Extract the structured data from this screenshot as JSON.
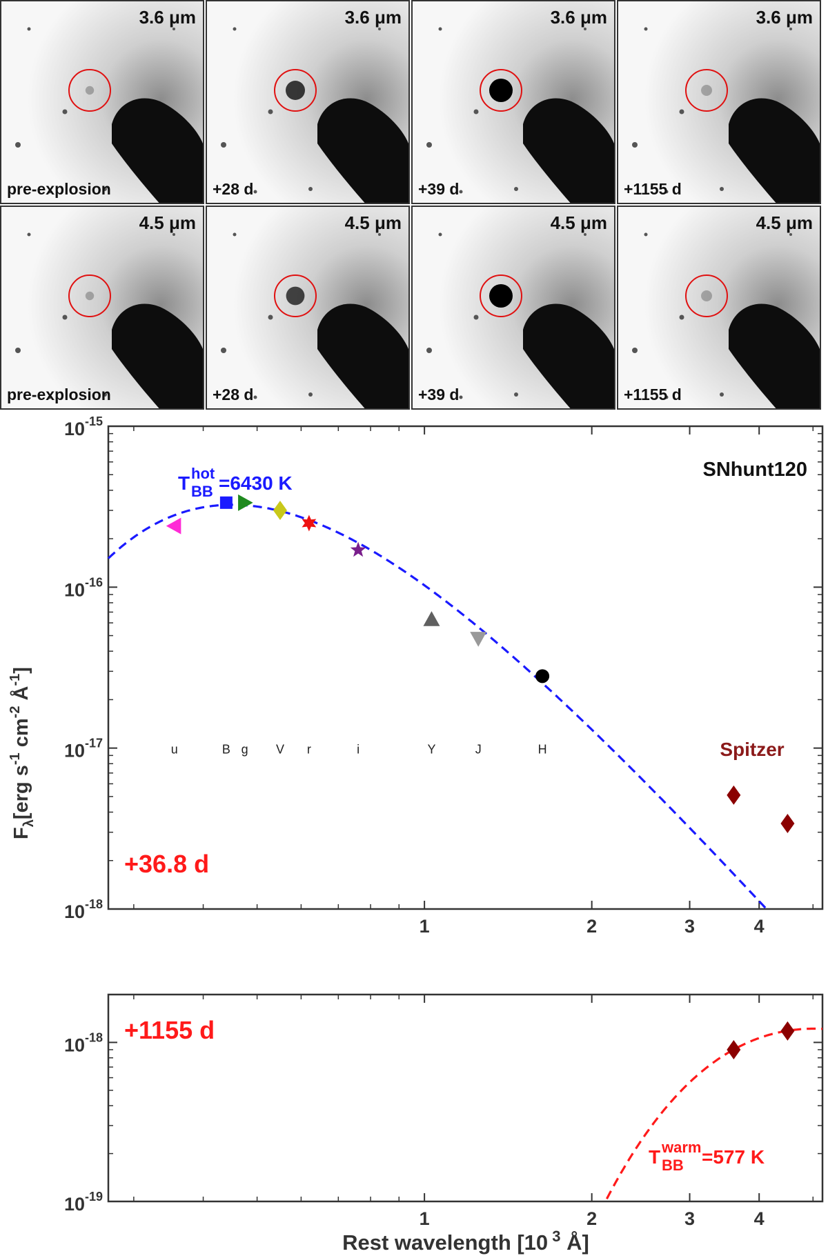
{
  "image_panels": {
    "rows": [
      {
        "band": "3.6 μm",
        "epochs": [
          "pre-explosion",
          "+28 d",
          "+39 d",
          "+1155 d"
        ],
        "source_strength": [
          0.1,
          0.75,
          1.0,
          0.25
        ]
      },
      {
        "band": "4.5 μm",
        "epochs": [
          "pre-explosion",
          "+28 d",
          "+39 d",
          "+1155 d"
        ],
        "source_strength": [
          0.1,
          0.7,
          1.0,
          0.25
        ]
      }
    ],
    "circle_color": "#e01010"
  },
  "chart_data": [
    {
      "type": "scatter",
      "panel": "top",
      "title": "SNhunt120",
      "epoch_label": "+36.8 d",
      "epoch_color": "#ff1a1a",
      "ylabel": "Fλ [erg s-1 cm-2 Å-1]",
      "ylabel_parts": {
        "F": "F",
        "lambda": "λ",
        "unit": "[erg s",
        "s_exp": "-1",
        "cm": " cm",
        "cm_exp": "-2",
        "A": " Å",
        "A_exp": "-1",
        "close": "]"
      },
      "xscale": "log",
      "yscale": "log",
      "xlim": [
        0.27,
        5.2
      ],
      "ylim": [
        1e-18,
        1e-15
      ],
      "xticks": [
        1,
        2,
        3,
        4
      ],
      "yticks": [
        {
          "value": 1e-18,
          "base": "10",
          "exp": "-18"
        },
        {
          "value": 1e-17,
          "base": "10",
          "exp": "-17"
        },
        {
          "value": 1e-16,
          "base": "10",
          "exp": "-16"
        },
        {
          "value": 1e-15,
          "base": "10",
          "exp": "-15"
        }
      ],
      "filter_labels": [
        {
          "label": "u",
          "x": 0.355
        },
        {
          "label": "B",
          "x": 0.44
        },
        {
          "label": "g",
          "x": 0.475
        },
        {
          "label": "V",
          "x": 0.55
        },
        {
          "label": "r",
          "x": 0.62
        },
        {
          "label": "i",
          "x": 0.76
        },
        {
          "label": "Y",
          "x": 1.03
        },
        {
          "label": "J",
          "x": 1.25
        },
        {
          "label": "H",
          "x": 1.63
        }
      ],
      "points": [
        {
          "band": "u",
          "x": 0.355,
          "y": 2.4e-16,
          "marker": "triangle-left",
          "color": "#ff2bd6"
        },
        {
          "band": "B",
          "x": 0.44,
          "y": 3.35e-16,
          "marker": "square",
          "color": "#1a1aff"
        },
        {
          "band": "g",
          "x": 0.475,
          "y": 3.35e-16,
          "marker": "triangle-right",
          "color": "#1f8a1f"
        },
        {
          "band": "V",
          "x": 0.55,
          "y": 3e-16,
          "marker": "diamond",
          "color": "#c8c81a"
        },
        {
          "band": "r",
          "x": 0.62,
          "y": 2.5e-16,
          "marker": "hexagram",
          "color": "#ee1111"
        },
        {
          "band": "i",
          "x": 0.76,
          "y": 1.7e-16,
          "marker": "pentagram",
          "color": "#7a1f8c"
        },
        {
          "band": "Y",
          "x": 1.03,
          "y": 6.3e-17,
          "marker": "triangle-up",
          "color": "#606060"
        },
        {
          "band": "J",
          "x": 1.25,
          "y": 4.8e-17,
          "marker": "triangle-down",
          "color": "#999999"
        },
        {
          "band": "H",
          "x": 1.63,
          "y": 2.8e-17,
          "marker": "circle",
          "color": "#000000"
        },
        {
          "band": "Spitzer 3.6",
          "x": 3.6,
          "y": 5.1e-18,
          "marker": "diamond",
          "color": "#8b0000"
        },
        {
          "band": "Spitzer 4.5",
          "x": 4.5,
          "y": 3.4e-18,
          "marker": "diamond",
          "color": "#8b0000"
        }
      ],
      "annotations": {
        "spitzer": "Spitzer",
        "spitzer_color": "#8b1a1a"
      },
      "blackbody_fit": {
        "T": "T",
        "sup": "hot",
        "sub": "BB",
        "rest": "=6430 K",
        "temperature_K": 6430,
        "peak_flux": 3.25e-16,
        "color": "#1a1aff"
      }
    },
    {
      "type": "scatter",
      "panel": "bottom",
      "epoch_label": "+1155 d",
      "epoch_color": "#ff1a1a",
      "xlabel_parts": {
        "main": "Rest wavelength [10",
        "exp": " 3",
        "unit": " Å]"
      },
      "xscale": "log",
      "yscale": "log",
      "xlim": [
        0.27,
        5.2
      ],
      "ylim": [
        1e-19,
        2e-18
      ],
      "xticks": [
        1,
        2,
        3,
        4
      ],
      "yticks": [
        {
          "value": 1e-19,
          "base": "10",
          "exp": "-19"
        },
        {
          "value": 1e-18,
          "base": "10",
          "exp": "-18"
        }
      ],
      "points": [
        {
          "band": "Spitzer 3.6",
          "x": 3.6,
          "y": 9e-19,
          "marker": "diamond",
          "color": "#8b0000"
        },
        {
          "band": "Spitzer 4.5",
          "x": 4.5,
          "y": 1.18e-18,
          "marker": "diamond",
          "color": "#8b0000"
        }
      ],
      "blackbody_fit": {
        "T": "T",
        "sup": "warm",
        "sub": "BB",
        "rest": "=577 K",
        "temperature_K": 577,
        "peak_flux": 1.22e-18,
        "color": "#ff1a1a"
      }
    }
  ]
}
